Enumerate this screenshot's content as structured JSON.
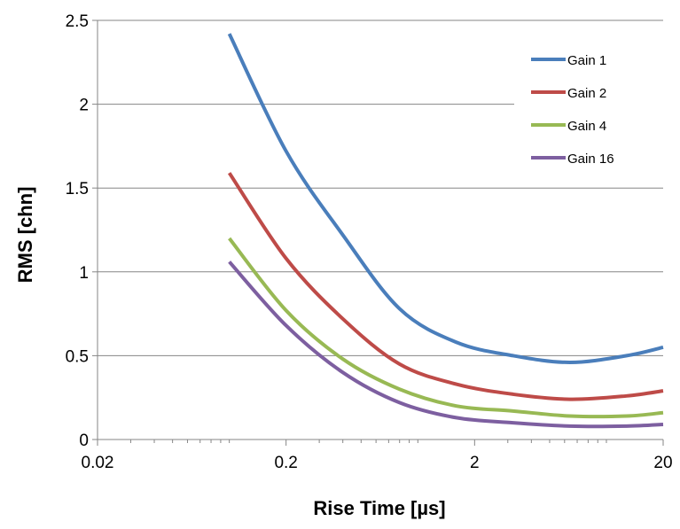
{
  "chart_data": {
    "type": "line",
    "title": "",
    "xlabel": "Rise Time [µs]",
    "ylabel": "RMS [chn]",
    "x_scale": "log",
    "xlim": [
      0.02,
      20
    ],
    "ylim": [
      0,
      2.5
    ],
    "x_ticks": [
      {
        "value": 0.02,
        "label": "0.02"
      },
      {
        "value": 0.2,
        "label": "0.2"
      },
      {
        "value": 2,
        "label": "2"
      },
      {
        "value": 20,
        "label": "20"
      }
    ],
    "y_ticks": [
      {
        "value": 0,
        "label": "0"
      },
      {
        "value": 0.5,
        "label": "0.5"
      },
      {
        "value": 1,
        "label": "1"
      },
      {
        "value": 1.5,
        "label": "1.5"
      },
      {
        "value": 2,
        "label": "2"
      },
      {
        "value": 2.5,
        "label": "2.5"
      }
    ],
    "grid": "horizontal major",
    "legend_position": "top-right",
    "x": [
      0.1,
      0.2,
      0.4,
      0.8,
      1.6,
      3.2,
      6.4,
      12.8,
      20
    ],
    "series": [
      {
        "name": "Gain 1",
        "color": "#4a7ebb",
        "values": [
          2.42,
          1.72,
          1.22,
          0.78,
          0.58,
          0.5,
          0.46,
          0.5,
          0.55
        ]
      },
      {
        "name": "Gain 2",
        "color": "#be4b48",
        "values": [
          1.59,
          1.08,
          0.72,
          0.45,
          0.33,
          0.27,
          0.24,
          0.26,
          0.29
        ]
      },
      {
        "name": "Gain 4",
        "color": "#98b954",
        "values": [
          1.2,
          0.77,
          0.48,
          0.3,
          0.2,
          0.17,
          0.14,
          0.14,
          0.16
        ]
      },
      {
        "name": "Gain 16",
        "color": "#7d5fa0",
        "values": [
          1.06,
          0.68,
          0.4,
          0.22,
          0.13,
          0.1,
          0.08,
          0.08,
          0.09
        ]
      }
    ]
  }
}
